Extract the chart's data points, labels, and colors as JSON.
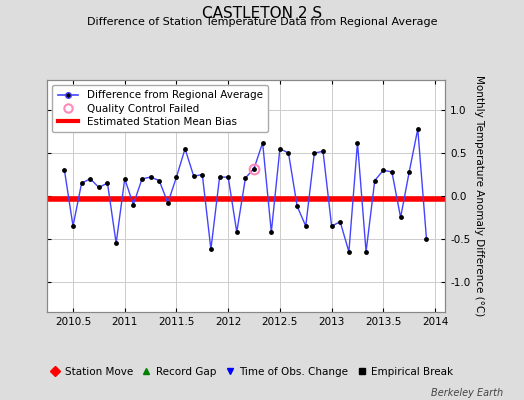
{
  "title": "CASTLETON 2 S",
  "subtitle": "Difference of Station Temperature Data from Regional Average",
  "ylabel": "Monthly Temperature Anomaly Difference (°C)",
  "background_color": "#dddddd",
  "plot_background_color": "#ffffff",
  "xlim": [
    2010.25,
    2014.1
  ],
  "ylim": [
    -1.35,
    1.35
  ],
  "yticks": [
    -1.0,
    -0.5,
    0.0,
    0.5,
    1.0
  ],
  "xticks": [
    2010.5,
    2011.0,
    2011.5,
    2012.0,
    2012.5,
    2013.0,
    2013.5,
    2014.0
  ],
  "xticklabels": [
    "2010.5",
    "2011",
    "2011.5",
    "2012",
    "2012.5",
    "2013",
    "2013.5",
    "2014"
  ],
  "bias_value": -0.04,
  "line_color": "#4444ff",
  "marker_color": "#000000",
  "bias_color": "#ff0000",
  "qc_fail_x": 2012.25,
  "qc_fail_y": 0.32,
  "x_values": [
    2010.417,
    2010.5,
    2010.583,
    2010.667,
    2010.75,
    2010.833,
    2010.917,
    2011.0,
    2011.083,
    2011.167,
    2011.25,
    2011.333,
    2011.417,
    2011.5,
    2011.583,
    2011.667,
    2011.75,
    2011.833,
    2011.917,
    2012.0,
    2012.083,
    2012.167,
    2012.25,
    2012.333,
    2012.417,
    2012.5,
    2012.583,
    2012.667,
    2012.75,
    2012.833,
    2012.917,
    2013.0,
    2013.083,
    2013.167,
    2013.25,
    2013.333,
    2013.417,
    2013.5,
    2013.583,
    2013.667,
    2013.75,
    2013.833,
    2013.917
  ],
  "y_values": [
    0.3,
    -0.35,
    0.15,
    0.2,
    0.1,
    0.15,
    -0.55,
    0.2,
    -0.1,
    0.2,
    0.22,
    0.18,
    -0.08,
    0.22,
    0.55,
    0.23,
    0.25,
    -0.62,
    0.22,
    0.22,
    -0.42,
    0.21,
    0.32,
    0.62,
    -0.42,
    0.55,
    0.5,
    -0.12,
    -0.35,
    0.5,
    0.52,
    -0.35,
    -0.3,
    -0.65,
    0.62,
    -0.65,
    0.18,
    0.3,
    0.28,
    -0.25,
    0.28,
    0.78,
    -0.5
  ],
  "grid_color": "#cccccc",
  "legend1_labels": [
    "Difference from Regional Average",
    "Quality Control Failed",
    "Estimated Station Mean Bias"
  ],
  "legend2_labels": [
    "Station Move",
    "Record Gap",
    "Time of Obs. Change",
    "Empirical Break"
  ],
  "watermark": "Berkeley Earth",
  "title_fontsize": 11,
  "subtitle_fontsize": 8,
  "tick_fontsize": 7.5,
  "ylabel_fontsize": 7.5,
  "legend_fontsize": 7.5
}
